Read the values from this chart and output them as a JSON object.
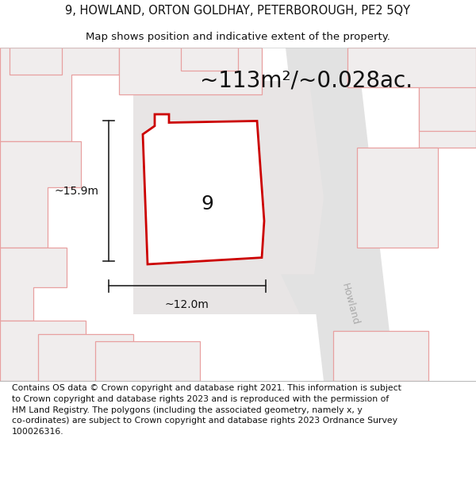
{
  "title_line1": "9, HOWLAND, ORTON GOLDHAY, PETERBOROUGH, PE2 5QY",
  "title_line2": "Map shows position and indicative extent of the property.",
  "area_text": "~113m²/~0.028ac.",
  "label_number": "9",
  "dim_height": "~15.9m",
  "dim_width": "~12.0m",
  "street_label": "Howland",
  "footer_text": "Contains OS data © Crown copyright and database right 2021. This information is subject to Crown copyright and database rights 2023 and is reproduced with the permission of HM Land Registry. The polygons (including the associated geometry, namely x, y co-ordinates) are subject to Crown copyright and database rights 2023 Ordnance Survey 100026316.",
  "bg_color": "#ffffff",
  "map_bg": "#ffffff",
  "road_color": "#e2e2e2",
  "parcel_bg": "#f0eded",
  "parcel_fill": "#ffffff",
  "parcel_edge": "#e8a0a0",
  "prop_edge": "#cc0000",
  "dim_color": "#222222",
  "street_text_color": "#aaaaaa",
  "title_fontsize": 10.5,
  "subtitle_fontsize": 9.5,
  "area_fontsize": 20,
  "label_fontsize": 18,
  "dim_fontsize": 10,
  "street_fontsize": 9,
  "footer_fontsize": 7.8
}
